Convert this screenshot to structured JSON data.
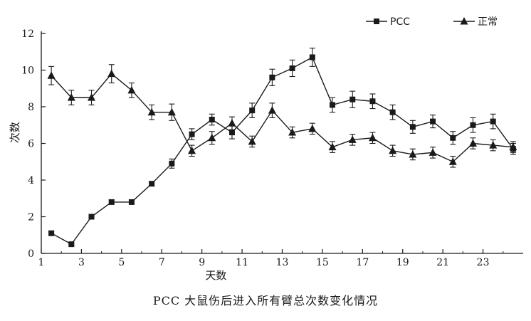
{
  "caption": "PCC 大鼠伤后进入所有臂总次数变化情况",
  "chart_data": {
    "type": "line",
    "title": "",
    "xlabel": "天数",
    "ylabel": "次数",
    "xlim": [
      1,
      25
    ],
    "ylim": [
      0,
      12
    ],
    "xticks": [
      1,
      3,
      5,
      7,
      9,
      11,
      13,
      15,
      17,
      19,
      21,
      23
    ],
    "yticks": [
      0,
      2,
      4,
      6,
      8,
      10,
      12
    ],
    "legend": "top-right",
    "grid": false,
    "series": [
      {
        "name": "PCC",
        "marker": "square",
        "color": "#1a1a1a",
        "x": [
          1.5,
          2.5,
          3.5,
          4.5,
          5.5,
          6.5,
          7.5,
          8.5,
          9.5,
          10.5,
          11.5,
          12.5,
          13.5,
          14.5,
          15.5,
          16.5,
          17.5,
          18.5,
          19.5,
          20.5,
          21.5,
          22.5,
          23.5,
          24.5
        ],
        "y": [
          1.1,
          0.5,
          2.0,
          2.8,
          2.8,
          3.8,
          4.9,
          6.5,
          7.3,
          6.6,
          7.8,
          9.6,
          10.1,
          10.7,
          8.1,
          8.4,
          8.3,
          7.7,
          6.9,
          7.2,
          6.3,
          7.0,
          7.2,
          5.7
        ],
        "err": [
          0.1,
          0.05,
          0.1,
          0.12,
          0.12,
          0.1,
          0.25,
          0.3,
          0.3,
          0.35,
          0.4,
          0.45,
          0.45,
          0.5,
          0.4,
          0.45,
          0.4,
          0.4,
          0.35,
          0.35,
          0.35,
          0.4,
          0.4,
          0.3
        ]
      },
      {
        "name": "正常",
        "marker": "triangle",
        "color": "#1a1a1a",
        "x": [
          1.5,
          2.5,
          3.5,
          4.5,
          5.5,
          6.5,
          7.5,
          8.5,
          9.5,
          10.5,
          11.5,
          12.5,
          13.5,
          14.5,
          15.5,
          16.5,
          17.5,
          18.5,
          19.5,
          20.5,
          21.5,
          22.5,
          23.5,
          24.5
        ],
        "y": [
          9.7,
          8.5,
          8.5,
          9.8,
          8.9,
          7.7,
          7.7,
          5.6,
          6.3,
          7.1,
          6.1,
          7.8,
          6.6,
          6.8,
          5.8,
          6.2,
          6.3,
          5.6,
          5.4,
          5.5,
          5.0,
          6.0,
          5.9,
          5.8
        ],
        "err": [
          0.5,
          0.4,
          0.4,
          0.5,
          0.4,
          0.4,
          0.45,
          0.3,
          0.35,
          0.35,
          0.3,
          0.4,
          0.3,
          0.3,
          0.3,
          0.3,
          0.3,
          0.3,
          0.3,
          0.3,
          0.3,
          0.3,
          0.3,
          0.3
        ]
      }
    ]
  }
}
